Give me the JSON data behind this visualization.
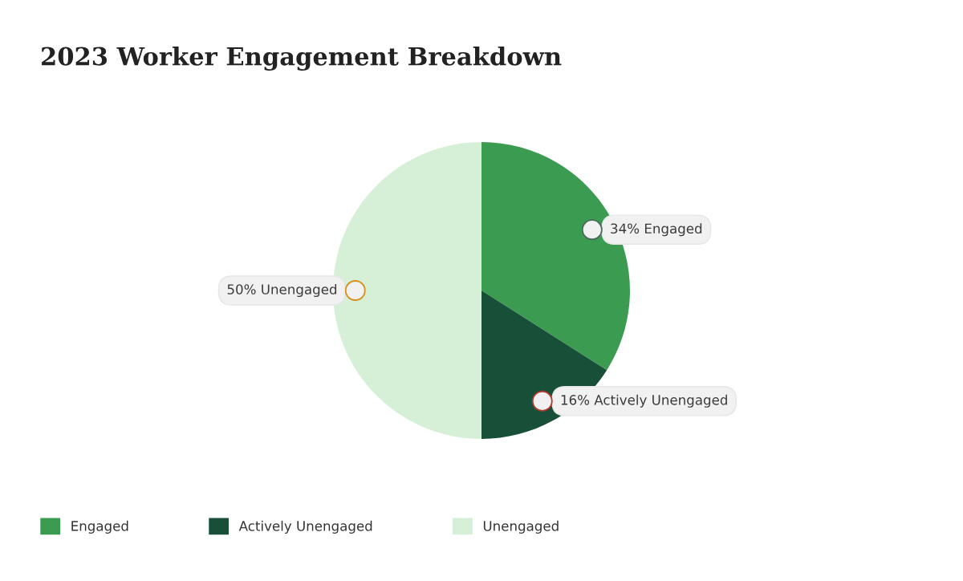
{
  "chart_data": {
    "type": "pie",
    "title": "2023 Worker Engagement Breakdown",
    "categories": [
      "Engaged",
      "Actively Unengaged",
      "Unengaged"
    ],
    "values": [
      34,
      16,
      50
    ],
    "colors": [
      "#3a9b51",
      "#174f38",
      "#d6f0d8"
    ],
    "value_labels": [
      "34% Engaged",
      "16% Actively Unengaged",
      "50% Unengaged"
    ],
    "legend": "bottom left"
  }
}
